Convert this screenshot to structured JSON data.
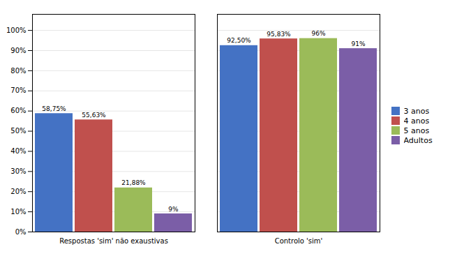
{
  "chart_data": {
    "type": "bar",
    "categories": [
      "Respostas 'sim' não exaustivas",
      "Controlo 'sim'"
    ],
    "series": [
      {
        "name": "3 anos",
        "color": "#4472C4",
        "values": [
          58.75,
          92.5
        ],
        "value_labels": [
          "58,75%",
          "92,50%"
        ]
      },
      {
        "name": "4 anos",
        "color": "#C0504D",
        "values": [
          55.63,
          95.83
        ],
        "value_labels": [
          "55,63%",
          "95,83%"
        ]
      },
      {
        "name": "5 anos",
        "color": "#9BBB59",
        "values": [
          21.88,
          96.0
        ],
        "value_labels": [
          "21,88%",
          "96%"
        ]
      },
      {
        "name": "Adultos",
        "color": "#7B5EA7",
        "values": [
          9.0,
          91.0
        ],
        "value_labels": [
          "9%",
          "91%"
        ]
      }
    ],
    "ylim": [
      0,
      108
    ],
    "yticks": [
      {
        "value": 0,
        "label": "0%"
      },
      {
        "value": 10,
        "label": "10%"
      },
      {
        "value": 20,
        "label": "20%"
      },
      {
        "value": 30,
        "label": "30%"
      },
      {
        "value": 40,
        "label": "40%"
      },
      {
        "value": 50,
        "label": "50%"
      },
      {
        "value": 60,
        "label": "60%"
      },
      {
        "value": 70,
        "label": "70%"
      },
      {
        "value": 80,
        "label": "80%"
      },
      {
        "value": 90,
        "label": "90%"
      },
      {
        "value": 100,
        "label": "100%"
      }
    ],
    "grid": true,
    "legend": "right",
    "data_labels": true
  }
}
